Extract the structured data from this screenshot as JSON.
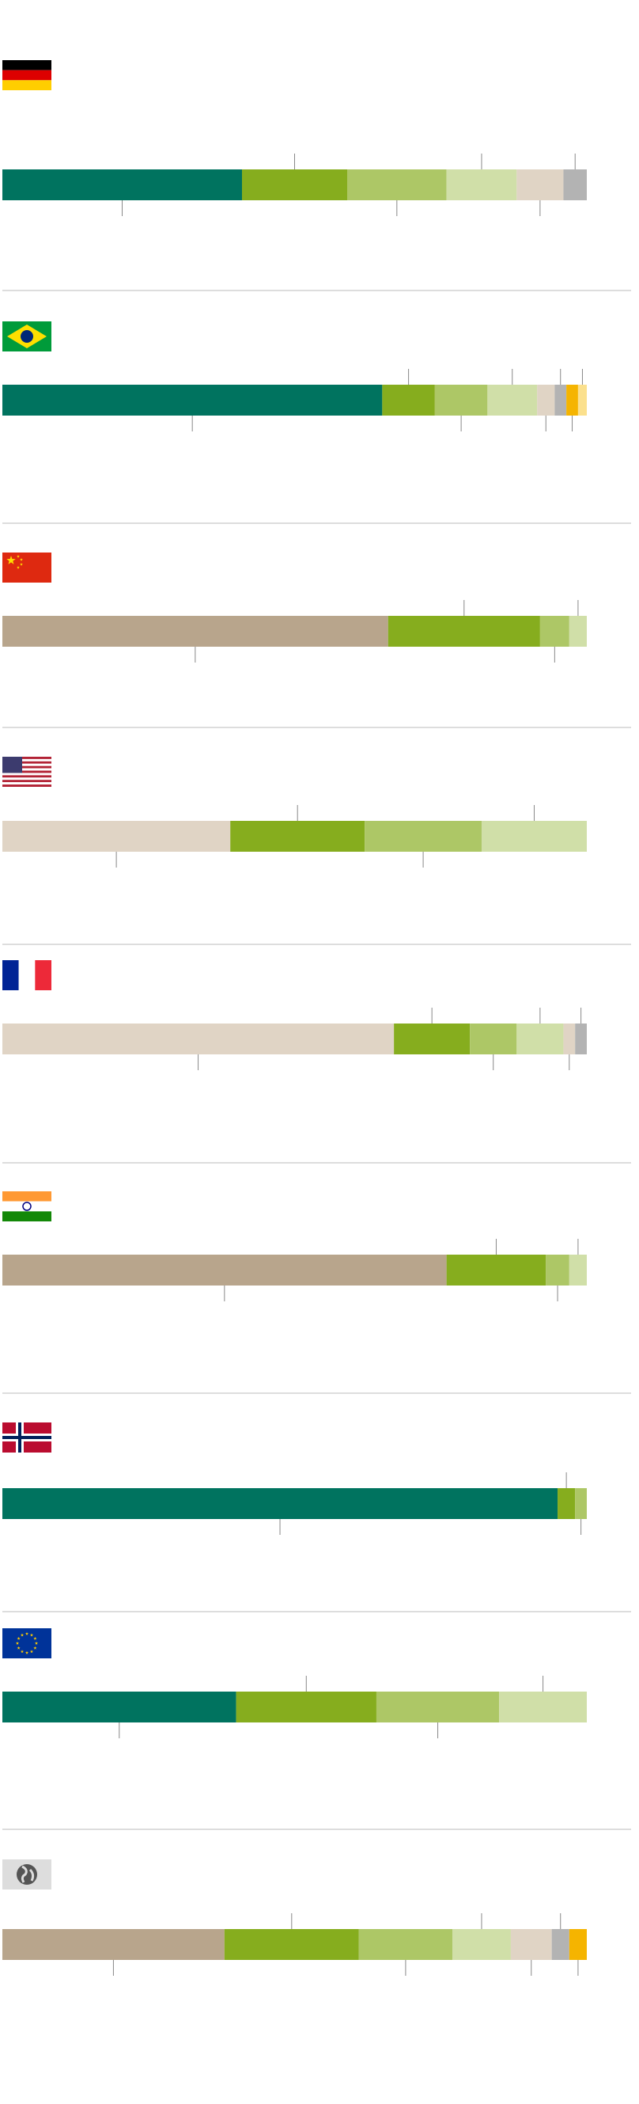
{
  "chart_data": [
    {
      "type": "stacked-bar",
      "xlim": [
        0,
        100
      ],
      "values": [
        41,
        18,
        17,
        12,
        8,
        4
      ],
      "colors": [
        "#00735f",
        "#86ad1e",
        "#adc766",
        "#d0dfa8",
        "#e0d4c5",
        "#b3b3b3"
      ]
    },
    {
      "type": "stacked-bar",
      "xlim": [
        0,
        100
      ],
      "values": [
        65,
        9,
        9,
        8.5,
        3,
        2,
        2,
        1.5
      ],
      "colors": [
        "#00735f",
        "#86ad1e",
        "#adc766",
        "#d0dfa8",
        "#e0d4c5",
        "#b3b3b3",
        "#f5b400",
        "#fbe08d"
      ]
    },
    {
      "type": "stacked-bar",
      "xlim": [
        0,
        100
      ],
      "values": [
        66,
        26,
        5,
        3
      ],
      "colors": [
        "#b8a58c",
        "#86ad1e",
        "#adc766",
        "#d0dfa8"
      ]
    },
    {
      "type": "stacked-bar",
      "xlim": [
        0,
        100
      ],
      "values": [
        39,
        23,
        20,
        18
      ],
      "colors": [
        "#e0d4c5",
        "#86ad1e",
        "#adc766",
        "#d0dfa8"
      ]
    },
    {
      "type": "stacked-bar",
      "xlim": [
        0,
        100
      ],
      "values": [
        67,
        13,
        8,
        8,
        2,
        2
      ],
      "colors": [
        "#e0d4c5",
        "#86ad1e",
        "#adc766",
        "#d0dfa8",
        "#e0d4c5",
        "#b3b3b3"
      ]
    },
    {
      "type": "stacked-bar",
      "xlim": [
        0,
        100
      ],
      "values": [
        76,
        17,
        4,
        3
      ],
      "colors": [
        "#b8a58c",
        "#86ad1e",
        "#adc766",
        "#d0dfa8"
      ]
    },
    {
      "type": "stacked-bar",
      "xlim": [
        0,
        100
      ],
      "values": [
        95,
        3,
        2
      ],
      "colors": [
        "#00735f",
        "#86ad1e",
        "#adc766"
      ]
    },
    {
      "type": "stacked-bar",
      "xlim": [
        0,
        100
      ],
      "values": [
        40,
        24,
        21,
        15
      ],
      "colors": [
        "#00735f",
        "#86ad1e",
        "#adc766",
        "#d0dfa8"
      ]
    },
    {
      "type": "stacked-bar",
      "xlim": [
        0,
        100
      ],
      "values": [
        38,
        23,
        16,
        10,
        7,
        3,
        3
      ],
      "colors": [
        "#b8a58c",
        "#86ad1e",
        "#adc766",
        "#d0dfa8",
        "#e0d4c5",
        "#b3b3b3",
        "#f5b400"
      ]
    }
  ]
}
